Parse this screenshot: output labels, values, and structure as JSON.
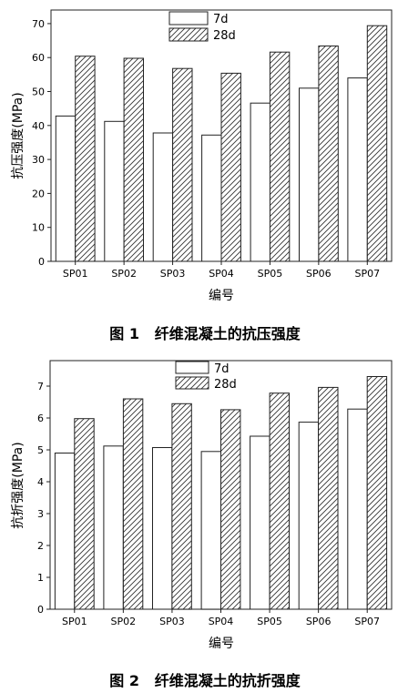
{
  "chart_data": [
    {
      "type": "bar",
      "caption": "图 1   纤维混凝土的抗压强度",
      "xlabel": "编号",
      "ylabel": "抗压强度(MPa)",
      "categories": [
        "SP01",
        "SP02",
        "SP03",
        "SP04",
        "SP05",
        "SP06",
        "SP07"
      ],
      "series": [
        {
          "name": "7d",
          "values": [
            42.8,
            41.2,
            37.8,
            37.2,
            46.6,
            51.0,
            54.0
          ]
        },
        {
          "name": "28d",
          "values": [
            60.4,
            59.8,
            56.8,
            55.4,
            61.6,
            63.4,
            69.4
          ]
        }
      ],
      "ylim": [
        0,
        74
      ],
      "yticks": [
        0,
        10,
        20,
        30,
        40,
        50,
        60,
        70
      ],
      "legend": "top-center",
      "grid": false
    },
    {
      "type": "bar",
      "caption": "图 2   纤维混凝土的抗折强度",
      "xlabel": "编号",
      "ylabel": "抗折强度(MPa)",
      "categories": [
        "SP01",
        "SP02",
        "SP03",
        "SP04",
        "SP05",
        "SP06",
        "SP07"
      ],
      "series": [
        {
          "name": "7d",
          "values": [
            4.9,
            5.12,
            5.07,
            4.95,
            5.43,
            5.87,
            6.28
          ]
        },
        {
          "name": "28d",
          "values": [
            5.98,
            6.6,
            6.45,
            6.26,
            6.78,
            6.96,
            7.3
          ]
        }
      ],
      "ylim": [
        0,
        7.8
      ],
      "yticks": [
        0,
        1,
        2,
        3,
        4,
        5,
        6,
        7
      ],
      "legend": "top-center",
      "grid": false
    }
  ],
  "colors": {
    "axis": "#222222",
    "bar_fill_7d": "#ffffff",
    "hatch": "#333333"
  }
}
